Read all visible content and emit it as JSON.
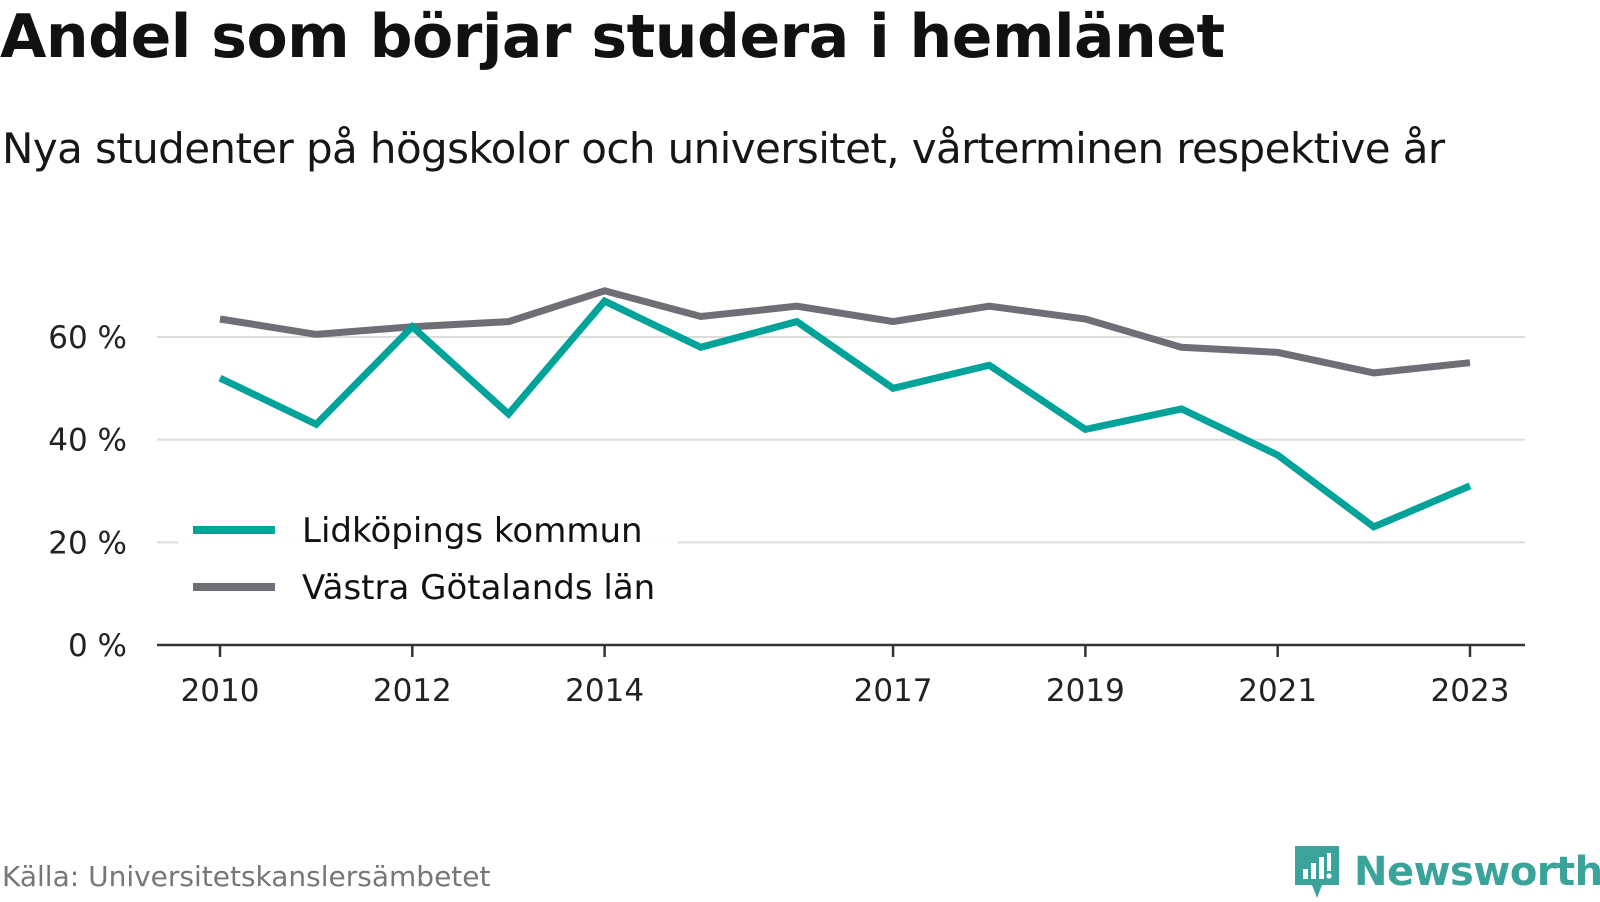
{
  "title": "Andel som börjar studera i hemlänet",
  "subtitle": "Nya studenter på högskolor och universitet, vårterminen respektive år",
  "source": "Källa: Universitetskanslersämbetet",
  "brand": {
    "name": "Newsworthy",
    "icon": "newsworthy-logo-icon",
    "color": "#3aa39a"
  },
  "chart_data": {
    "type": "line",
    "x": [
      2010,
      2011,
      2012,
      2013,
      2014,
      2015,
      2016,
      2017,
      2018,
      2019,
      2020,
      2021,
      2022,
      2023
    ],
    "x_tick_labels": [
      "2010",
      "2012",
      "2014",
      "2017",
      "2019",
      "2021",
      "2023"
    ],
    "y_ticks": [
      0,
      20,
      40,
      60
    ],
    "y_tick_labels": [
      "0 %",
      "20 %",
      "40 %",
      "60 %"
    ],
    "ylim": [
      0,
      73
    ],
    "grid": true,
    "legend_position": "bottom-left",
    "series": [
      {
        "name": "Lidköpings kommun",
        "color": "#00a39a",
        "values": [
          52,
          43,
          62,
          45,
          67,
          58,
          63,
          50,
          54.5,
          42,
          46,
          37,
          23,
          31
        ]
      },
      {
        "name": "Västra Götalands län",
        "color": "#6e6e76",
        "values": [
          63.5,
          60.5,
          62,
          63,
          69,
          64,
          66,
          63,
          66,
          63.5,
          58,
          57,
          53,
          55
        ]
      }
    ]
  }
}
